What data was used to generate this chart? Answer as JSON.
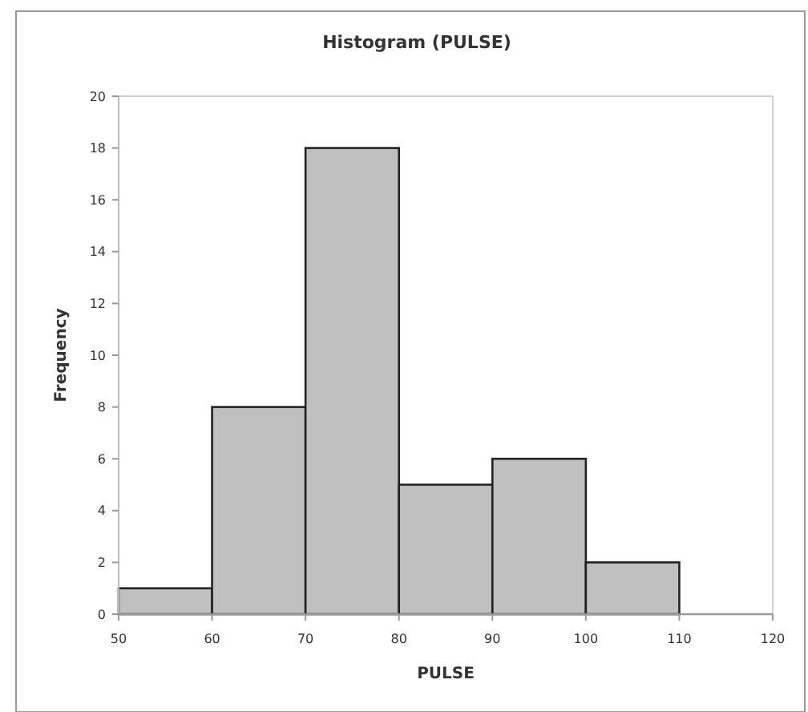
{
  "chart_data": {
    "type": "histogram",
    "title": "Histogram (PULSE)",
    "xlabel": "PULSE",
    "ylabel": "Frequency",
    "bins": [
      50,
      60,
      70,
      80,
      90,
      100,
      110,
      120
    ],
    "values": [
      1,
      8,
      18,
      5,
      6,
      2,
      0
    ],
    "color": "#c0c0c0",
    "xlim": [
      50,
      120
    ],
    "xticks": [
      50,
      60,
      70,
      80,
      90,
      100,
      110,
      120
    ],
    "ylim": [
      0,
      20
    ],
    "yticks": [
      0,
      2,
      4,
      6,
      8,
      10,
      12,
      14,
      16,
      18,
      20
    ]
  }
}
